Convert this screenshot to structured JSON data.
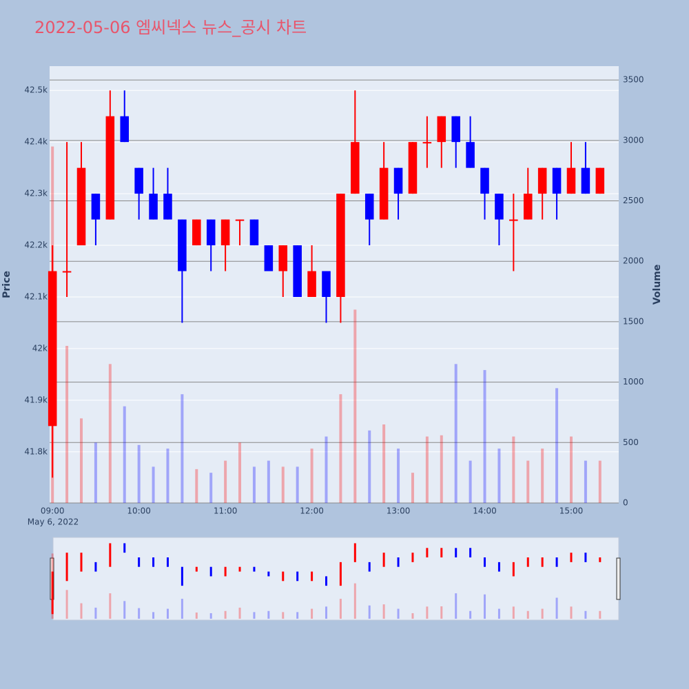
{
  "chart_data": {
    "type": "candlestick",
    "title": "2022-05-06 엠씨넥스 뉴스_공시 차트",
    "y_label": "Price",
    "y2_label": "Volume",
    "x_date_label": "May 6, 2022",
    "x": [
      "09:00",
      "09:10",
      "09:20",
      "09:30",
      "09:40",
      "09:50",
      "10:00",
      "10:10",
      "10:20",
      "10:30",
      "10:40",
      "10:50",
      "11:00",
      "11:10",
      "11:20",
      "11:30",
      "11:40",
      "11:50",
      "12:00",
      "12:10",
      "12:20",
      "12:30",
      "12:40",
      "12:50",
      "13:00",
      "13:10",
      "13:20",
      "13:30",
      "13:40",
      "13:50",
      "14:00",
      "14:10",
      "14:20",
      "14:30",
      "14:40",
      "14:50",
      "15:00",
      "15:10",
      "15:20"
    ],
    "open": [
      41850,
      42150,
      42200,
      42300,
      42250,
      42450,
      42350,
      42300,
      42300,
      42250,
      42200,
      42250,
      42200,
      42250,
      42250,
      42200,
      42150,
      42200,
      42100,
      42150,
      42100,
      42300,
      42300,
      42250,
      42350,
      42300,
      42400,
      42400,
      42450,
      42400,
      42350,
      42300,
      42250,
      42250,
      42300,
      42350,
      42300,
      42350,
      42300
    ],
    "high": [
      42200,
      42400,
      42400,
      42300,
      42500,
      42500,
      42350,
      42350,
      42350,
      42250,
      42250,
      42250,
      42250,
      42250,
      42250,
      42200,
      42200,
      42200,
      42200,
      42150,
      42300,
      42500,
      42300,
      42400,
      42350,
      42400,
      42450,
      42450,
      42450,
      42450,
      42350,
      42300,
      42300,
      42350,
      42350,
      42350,
      42400,
      42400,
      42350
    ],
    "low": [
      41750,
      42100,
      42200,
      42200,
      42250,
      42400,
      42250,
      42250,
      42250,
      42050,
      42200,
      42150,
      42150,
      42200,
      42200,
      42150,
      42100,
      42100,
      42100,
      42050,
      42050,
      42300,
      42200,
      42250,
      42250,
      42300,
      42350,
      42350,
      42350,
      42350,
      42250,
      42200,
      42150,
      42250,
      42250,
      42250,
      42300,
      42300,
      42300
    ],
    "close": [
      42150,
      42150,
      42350,
      42250,
      42450,
      42400,
      42300,
      42250,
      42250,
      42150,
      42250,
      42200,
      42250,
      42250,
      42200,
      42150,
      42200,
      42100,
      42150,
      42100,
      42300,
      42400,
      42250,
      42350,
      42300,
      42400,
      42400,
      42450,
      42400,
      42350,
      42300,
      42250,
      42250,
      42300,
      42350,
      42300,
      42350,
      42300,
      42350
    ],
    "volume": [
      2950,
      1300,
      700,
      500,
      1150,
      800,
      480,
      300,
      450,
      900,
      280,
      250,
      350,
      500,
      300,
      350,
      300,
      300,
      450,
      550,
      900,
      1600,
      600,
      650,
      450,
      250,
      550,
      560,
      1150,
      350,
      1100,
      450,
      550,
      350,
      450,
      950,
      550,
      350,
      350
    ],
    "increasing_color": "#ff0000",
    "decreasing_color": "#0000ff",
    "xlim": [
      "08:58",
      "15:33"
    ],
    "xticks": [
      "09:00",
      "10:00",
      "11:00",
      "12:00",
      "13:00",
      "14:00",
      "15:00"
    ],
    "ylim": [
      41701,
      42547
    ],
    "yticks": [
      {
        "value": 41800,
        "label": "41.8k"
      },
      {
        "value": 41900,
        "label": "41.9k"
      },
      {
        "value": 42000,
        "label": "42k"
      },
      {
        "value": 42100,
        "label": "42.1k"
      },
      {
        "value": 42200,
        "label": "42.2k"
      },
      {
        "value": 42300,
        "label": "42.3k"
      },
      {
        "value": 42400,
        "label": "42.4k"
      },
      {
        "value": 42500,
        "label": "42.5k"
      }
    ],
    "y2lim": [
      0,
      3615
    ],
    "y2ticks": [
      0,
      500,
      1000,
      1500,
      2000,
      2500,
      3000,
      3500
    ],
    "grid": true
  }
}
